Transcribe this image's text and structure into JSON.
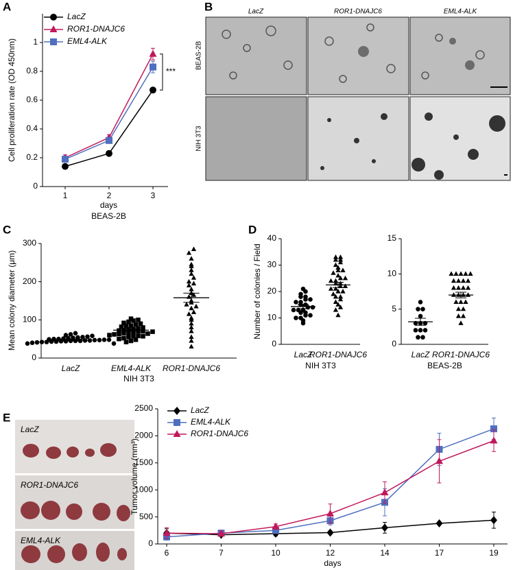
{
  "chart_data": [
    {
      "type": "line",
      "panel": "A",
      "ylabel": "Cell proliferation rate (OD 450nm)",
      "xlabel": "days",
      "subtitle": "BEAS-2B",
      "categories": [
        "1",
        "2",
        "3"
      ],
      "ylim": [
        0,
        1.2
      ],
      "yticks": [
        0,
        0.2,
        0.4,
        0.6,
        0.8,
        1
      ],
      "annotation": "***",
      "legend": "top-left",
      "series": [
        {
          "name": "LacZ",
          "color": "#000000",
          "marker": "circle",
          "values": [
            0.14,
            0.23,
            0.67
          ],
          "errors": [
            0.01,
            0.01,
            0.01
          ]
        },
        {
          "name": "ROR1-DNAJC6",
          "color": "#c0185a",
          "marker": "triangle",
          "values": [
            0.2,
            0.34,
            0.92
          ],
          "errors": [
            0.02,
            0.02,
            0.04
          ]
        },
        {
          "name": "EML4-ALK",
          "color": "#4f6fbf",
          "marker": "square",
          "values": [
            0.19,
            0.32,
            0.83
          ],
          "errors": [
            0.02,
            0.02,
            0.04
          ]
        }
      ]
    },
    {
      "type": "dotplot",
      "panel": "C",
      "ylabel": "Mean colony diameter (μm)",
      "xlabel": "NIH 3T3",
      "categories": [
        "LacZ",
        "EML4-ALK",
        "ROR1-DNAJC6"
      ],
      "markers": [
        "circle",
        "square",
        "triangle"
      ],
      "ylim": [
        0,
        300
      ],
      "yticks": [
        0,
        100,
        200,
        300
      ],
      "points": [
        [
          38,
          40,
          41,
          42,
          42,
          43,
          43,
          44,
          44,
          45,
          45,
          45,
          46,
          46,
          47,
          47,
          48,
          48,
          49,
          50,
          50,
          51,
          52,
          53,
          54,
          55,
          56,
          58,
          60,
          62,
          65,
          38
        ],
        [
          42,
          45,
          48,
          50,
          52,
          55,
          57,
          58,
          60,
          62,
          63,
          65,
          66,
          68,
          70,
          70,
          72,
          73,
          75,
          76,
          78,
          80,
          82,
          84,
          85,
          88,
          90,
          92,
          95,
          98,
          100,
          103,
          57,
          64,
          69
        ],
        [
          30,
          45,
          55,
          70,
          80,
          90,
          100,
          105,
          115,
          120,
          130,
          140,
          145,
          150,
          160,
          170,
          180,
          190,
          195,
          200,
          210,
          220,
          230,
          240,
          245,
          260,
          275,
          285,
          135,
          165
        ]
      ],
      "means": [
        47,
        73,
        158
      ],
      "sems": [
        2,
        3,
        12
      ]
    },
    {
      "type": "dotplot",
      "panel": "D",
      "ylabel": "Number of colonies / Field",
      "xlabel": "NIH 3T3",
      "categories": [
        "LacZ",
        "ROR1-DNAJC6"
      ],
      "markers": [
        "circle",
        "triangle"
      ],
      "ylim": [
        0,
        40
      ],
      "yticks": [
        0,
        10,
        20,
        30,
        40
      ],
      "points": [
        [
          8,
          9,
          10,
          10,
          11,
          11,
          12,
          12,
          13,
          13,
          13,
          14,
          14,
          15,
          15,
          16,
          16,
          17,
          17,
          18,
          18,
          19,
          20,
          21
        ],
        [
          11,
          13,
          14,
          15,
          16,
          17,
          18,
          18,
          19,
          20,
          20,
          21,
          21,
          22,
          22,
          23,
          23,
          24,
          24,
          25,
          25,
          26,
          27,
          28,
          28,
          29,
          30,
          31,
          32,
          32,
          33,
          33
        ]
      ],
      "means": [
        14.3,
        22.5
      ],
      "sems": [
        0.8,
        1
      ]
    },
    {
      "type": "dotplot",
      "xlabel": "BEAS-2B",
      "categories": [
        "LacZ",
        "ROR1-DNAJC6"
      ],
      "markers": [
        "circle",
        "triangle"
      ],
      "ylim": [
        0,
        15
      ],
      "yticks": [
        0,
        5,
        10,
        15
      ],
      "points": [
        [
          1,
          1,
          2,
          2,
          2,
          3,
          3,
          3,
          4,
          5,
          5,
          6
        ],
        [
          3,
          4,
          4,
          5,
          5,
          6,
          6,
          6,
          7,
          7,
          7,
          7,
          8,
          8,
          8,
          8,
          9,
          9,
          9,
          9,
          10,
          10,
          10,
          10,
          10
        ]
      ],
      "means": [
        3.2,
        7
      ],
      "sems": [
        0.5,
        0.4
      ]
    },
    {
      "type": "line",
      "ylabel": "Tumor volume (mm³)",
      "xlabel": "days",
      "categories": [
        "6",
        "7",
        "10",
        "12",
        "14",
        "17",
        "19"
      ],
      "ylim": [
        0,
        2500
      ],
      "yticks": [
        0,
        500,
        1000,
        1500,
        2000,
        2500
      ],
      "legend": "top-left",
      "series": [
        {
          "name": "LacZ",
          "color": "#000000",
          "marker": "diamond",
          "values": [
            200,
            170,
            190,
            210,
            300,
            380,
            440
          ],
          "errors": [
            80,
            30,
            40,
            30,
            100,
            20,
            150
          ]
        },
        {
          "name": "EML4-ALK",
          "color": "#4f6fbf",
          "marker": "square",
          "values": [
            130,
            200,
            250,
            430,
            770,
            1750,
            2130
          ],
          "errors": [
            60,
            40,
            50,
            80,
            250,
            300,
            200
          ]
        },
        {
          "name": "ROR1-DNAJC6",
          "color": "#c0185a",
          "marker": "triangle",
          "values": [
            200,
            190,
            320,
            560,
            950,
            1530,
            1910
          ],
          "errors": [
            100,
            50,
            50,
            180,
            200,
            400,
            200
          ]
        }
      ]
    }
  ],
  "image_panels": {
    "B": {
      "panel": "B",
      "columns": [
        "LacZ",
        "ROR1-DNAJC6",
        "EML4-ALK"
      ],
      "rows": [
        "BEAS-2B",
        "NIH 3T3"
      ]
    },
    "E": {
      "panel": "E",
      "rows": [
        "LacZ",
        "ROR1-DNAJC6",
        "EML4-ALK"
      ]
    }
  }
}
